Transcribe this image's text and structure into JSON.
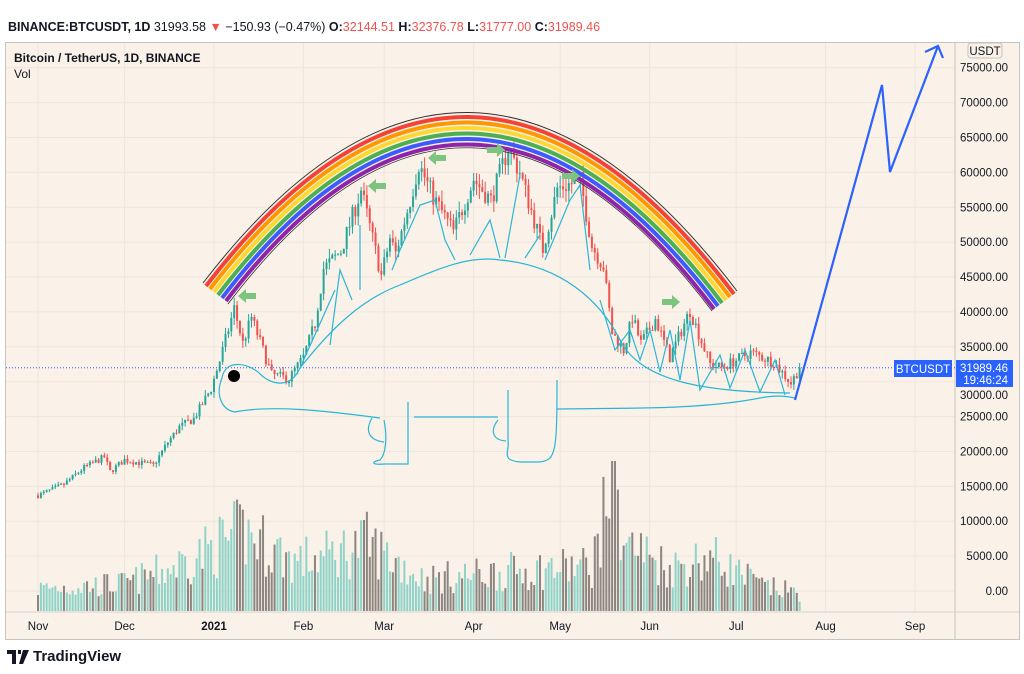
{
  "header": {
    "symbol": "BINANCE:BTCUSDT, 1D",
    "last": "31993.58",
    "change": "−150.93 (−0.47%)",
    "o_label": "O:",
    "o": "32144.51",
    "h_label": "H:",
    "h": "32376.78",
    "l_label": "L:",
    "l": "31777.00",
    "c_label": "C:",
    "c": "31989.46"
  },
  "legend": {
    "title": "Bitcoin / TetherUS, 1D, BINANCE",
    "vol": "Vol"
  },
  "price_axis": {
    "currency": "USDT",
    "badge_symbol": "BTCUSDT",
    "badge_price": "31989.46",
    "badge_timer": "19:46:24"
  },
  "branding": {
    "logo": "TradingView"
  },
  "colors": {
    "up": "#26a69a",
    "down": "#ef5350",
    "vol_up": "#8fd3c8",
    "vol_down": "#8c8580",
    "drawing": "#29b6d6",
    "projection": "#2962ff",
    "arrow": "#7cc47f",
    "bg": "#faf1e8"
  },
  "chart_data": {
    "type": "candlestick",
    "title": "Bitcoin / TetherUS, 1D, BINANCE",
    "xlabel": "",
    "ylabel": "USDT",
    "ylim": [
      0,
      78000
    ],
    "yticks": [
      "75000.00",
      "70000.00",
      "65000.00",
      "60000.00",
      "55000.00",
      "50000.00",
      "45000.00",
      "40000.00",
      "35000.00",
      "30000.00",
      "25000.00",
      "20000.00",
      "15000.00",
      "10000.00",
      "5000.00",
      "0.00"
    ],
    "ytick_values": [
      75000,
      70000,
      65000,
      60000,
      55000,
      50000,
      45000,
      40000,
      35000,
      30000,
      25000,
      20000,
      15000,
      10000,
      5000,
      0
    ],
    "xticks": [
      "Nov",
      "Dec",
      "2021",
      "Feb",
      "Mar",
      "Apr",
      "May",
      "Jun",
      "Jul",
      "Aug",
      "Sep"
    ],
    "xtick_dates": [
      "2020-11-01",
      "2020-12-01",
      "2021-01-01",
      "2021-02-01",
      "2021-03-01",
      "2021-04-01",
      "2021-05-01",
      "2021-06-01",
      "2021-07-01",
      "2021-08-01",
      "2021-09-01"
    ],
    "start_date": "2020-11-01",
    "end_date": "2021-07-23",
    "last_close": 31989.46,
    "close_anchors": [
      [
        "2020-11-01",
        13700
      ],
      [
        "2020-11-10",
        15300
      ],
      [
        "2020-11-17",
        17700
      ],
      [
        "2020-11-24",
        19200
      ],
      [
        "2020-11-26",
        17100
      ],
      [
        "2020-12-01",
        18800
      ],
      [
        "2020-12-11",
        18000
      ],
      [
        "2020-12-16",
        21300
      ],
      [
        "2020-12-20",
        23500
      ],
      [
        "2020-12-25",
        24700
      ],
      [
        "2020-12-31",
        29000
      ],
      [
        "2021-01-03",
        33000
      ],
      [
        "2021-01-08",
        40500
      ],
      [
        "2021-01-11",
        35500
      ],
      [
        "2021-01-14",
        39200
      ],
      [
        "2021-01-21",
        31000
      ],
      [
        "2021-01-27",
        30400
      ],
      [
        "2021-02-01",
        33500
      ],
      [
        "2021-02-05",
        38300
      ],
      [
        "2021-02-08",
        46200
      ],
      [
        "2021-02-14",
        48700
      ],
      [
        "2021-02-21",
        57500
      ],
      [
        "2021-02-28",
        45200
      ],
      [
        "2021-03-03",
        50500
      ],
      [
        "2021-03-05",
        48400
      ],
      [
        "2021-03-10",
        56000
      ],
      [
        "2021-03-13",
        61200
      ],
      [
        "2021-03-18",
        56500
      ],
      [
        "2021-03-25",
        51500
      ],
      [
        "2021-04-01",
        59000
      ],
      [
        "2021-04-07",
        56000
      ],
      [
        "2021-04-13",
        63500
      ],
      [
        "2021-04-17",
        60000
      ],
      [
        "2021-04-25",
        49000
      ],
      [
        "2021-04-30",
        57700
      ],
      [
        "2021-05-08",
        58800
      ],
      [
        "2021-05-12",
        49500
      ],
      [
        "2021-05-16",
        46500
      ],
      [
        "2021-05-19",
        37000
      ],
      [
        "2021-05-23",
        34500
      ],
      [
        "2021-05-26",
        39200
      ],
      [
        "2021-05-29",
        35500
      ],
      [
        "2021-06-03",
        39000
      ],
      [
        "2021-06-08",
        33500
      ],
      [
        "2021-06-15",
        40200
      ],
      [
        "2021-06-22",
        32500
      ],
      [
        "2021-06-26",
        32000
      ],
      [
        "2021-07-06",
        34200
      ],
      [
        "2021-07-14",
        32800
      ],
      [
        "2021-07-20",
        29800
      ],
      [
        "2021-07-23",
        31990
      ]
    ],
    "volume_anchors": [
      [
        "2020-11-01",
        50
      ],
      [
        "2020-12-01",
        60
      ],
      [
        "2020-12-17",
        95
      ],
      [
        "2021-01-04",
        150
      ],
      [
        "2021-01-11",
        175
      ],
      [
        "2021-01-29",
        110
      ],
      [
        "2021-02-08",
        120
      ],
      [
        "2021-02-23",
        150
      ],
      [
        "2021-03-15",
        70
      ],
      [
        "2021-04-18",
        90
      ],
      [
        "2021-05-12",
        100
      ],
      [
        "2021-05-19",
        280
      ],
      [
        "2021-05-24",
        150
      ],
      [
        "2021-06-08",
        95
      ],
      [
        "2021-06-22",
        120
      ],
      [
        "2021-07-10",
        55
      ],
      [
        "2021-07-23",
        40
      ]
    ]
  }
}
